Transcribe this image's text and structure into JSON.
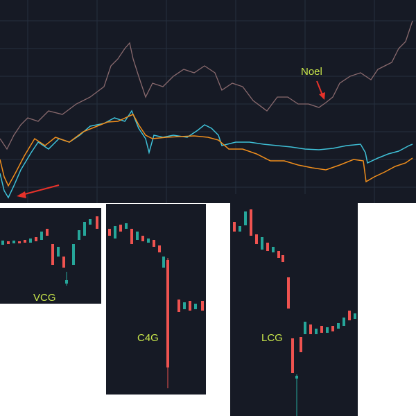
{
  "annotations": {
    "top": "Noel",
    "vcg": "VCG",
    "c4g": "C4G",
    "lcg": "LCG"
  }
}
